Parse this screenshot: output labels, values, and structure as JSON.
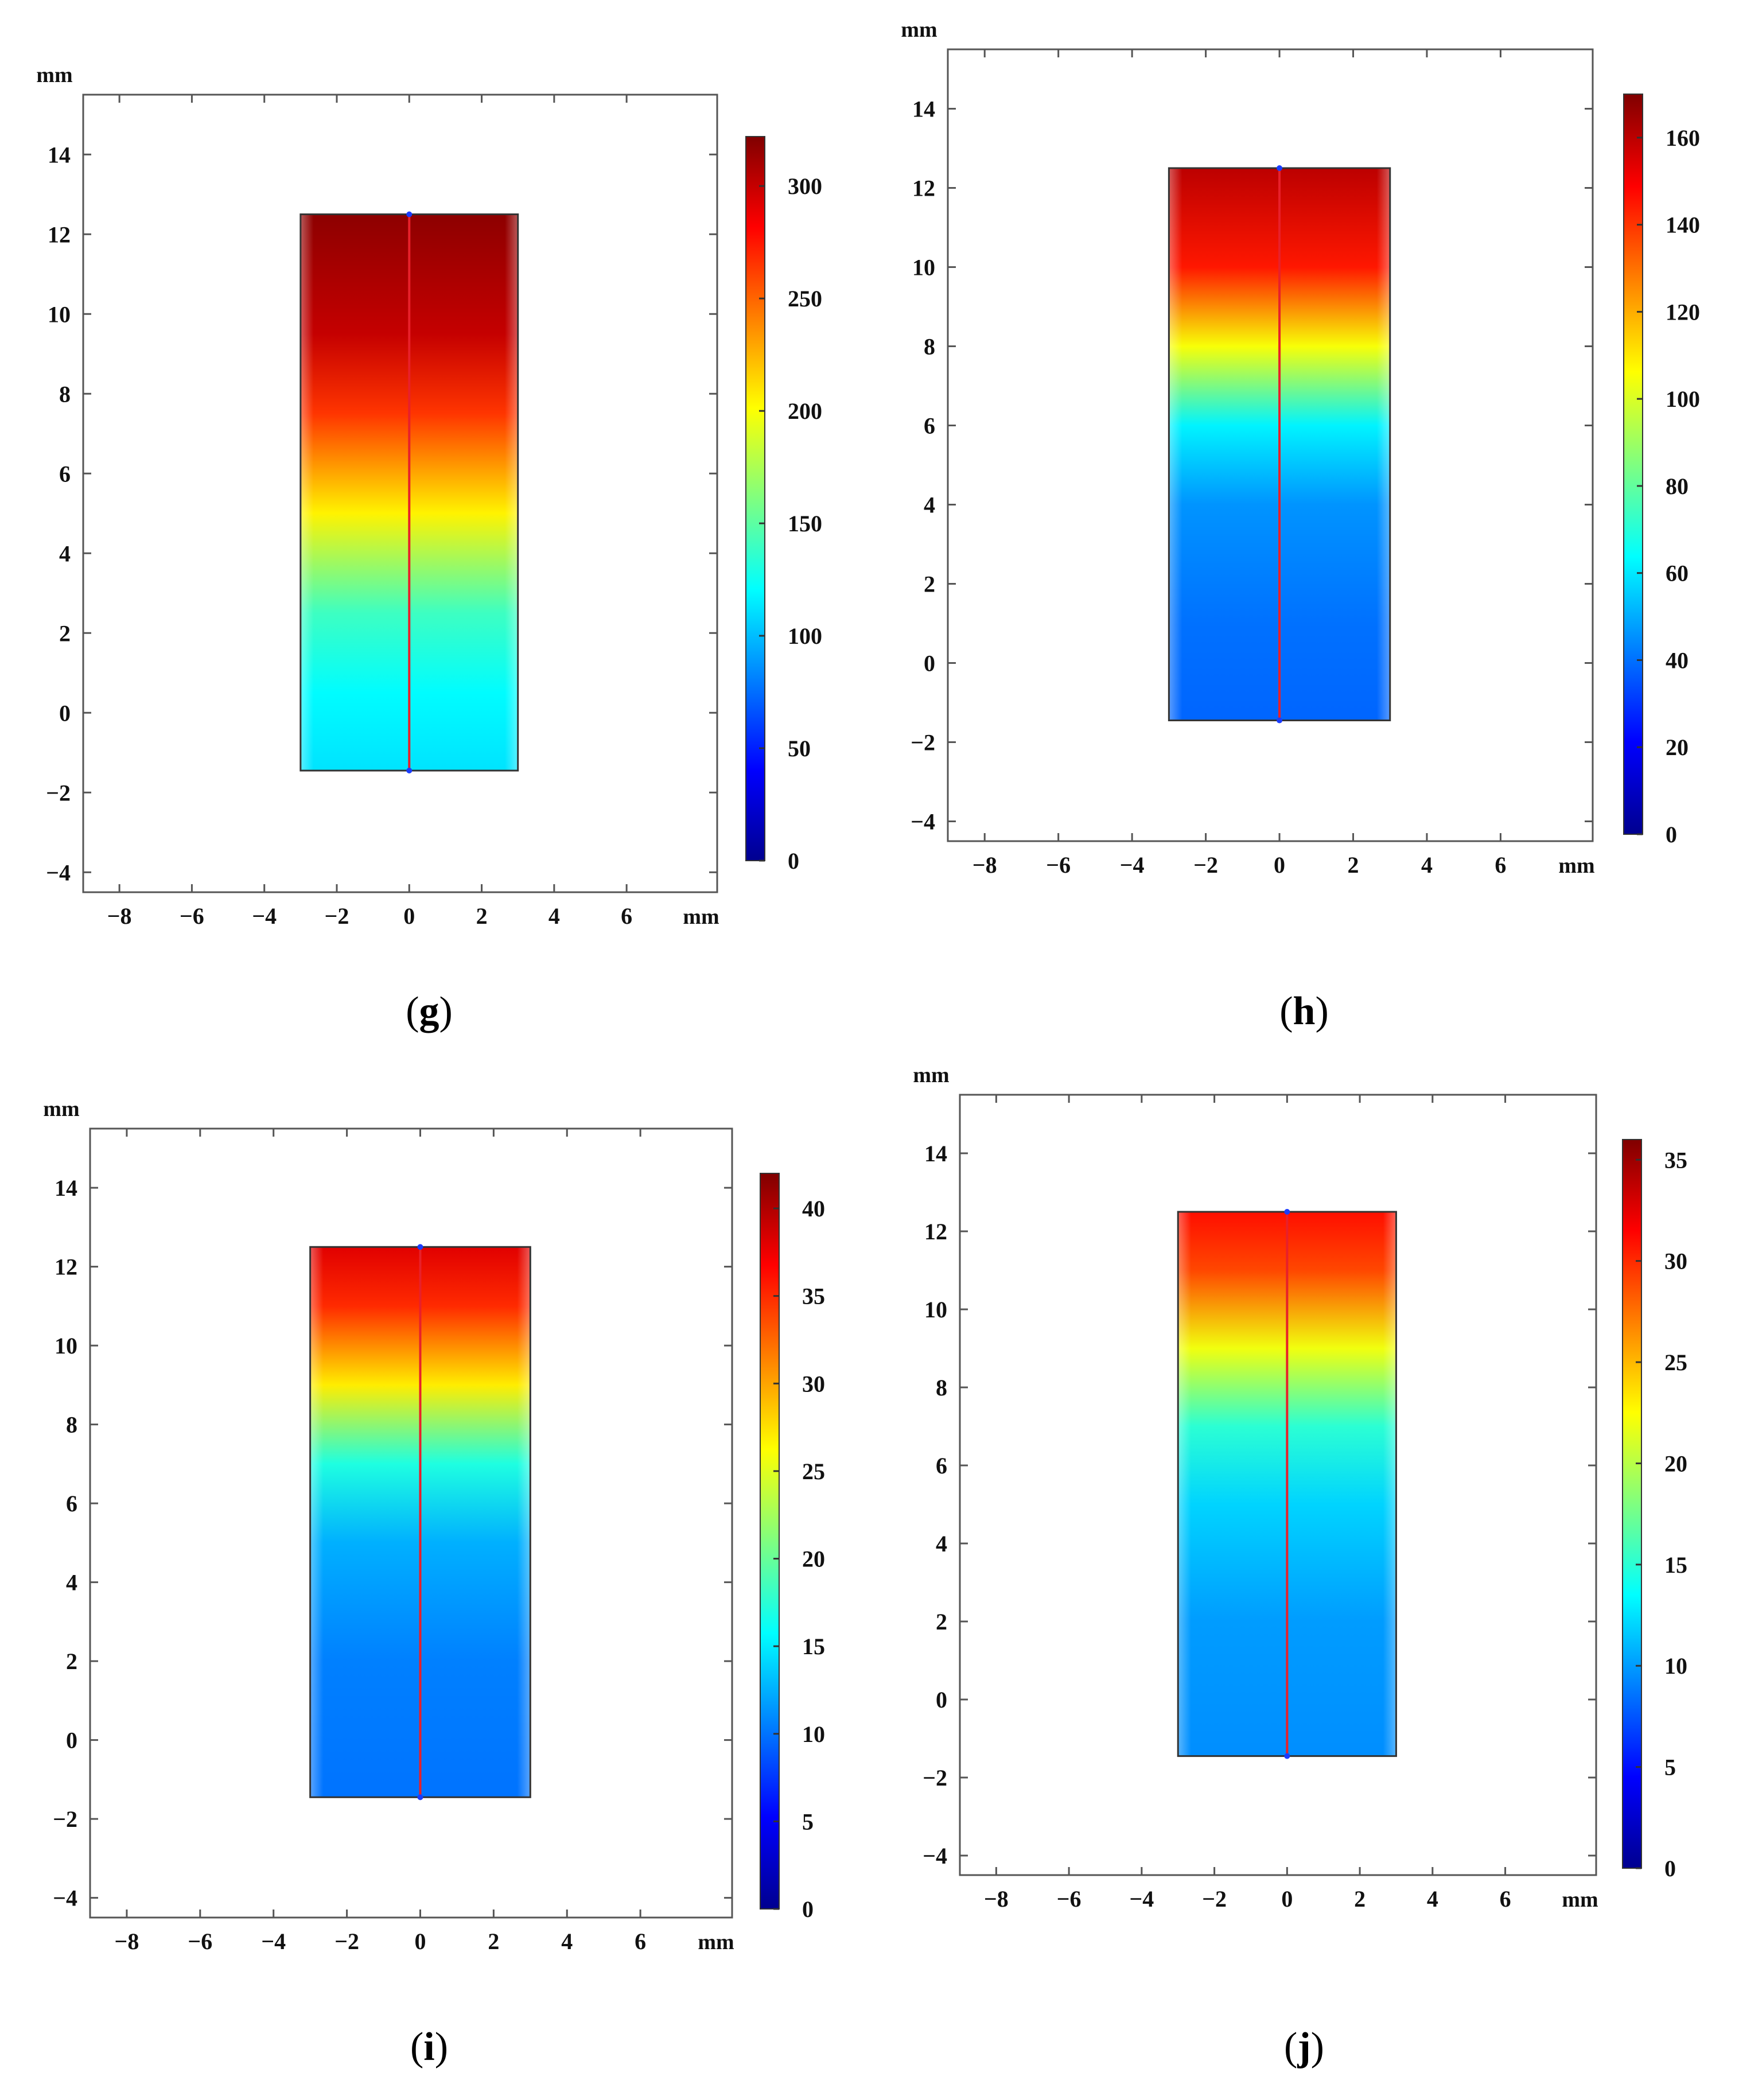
{
  "figure": {
    "units": "mm",
    "x_ticks": [
      "−8",
      "−6",
      "−4",
      "−2",
      "0",
      "2",
      "4",
      "6"
    ],
    "y_ticks": [
      "−4",
      "−2",
      "0",
      "2",
      "4",
      "6",
      "8",
      "10",
      "12",
      "14"
    ]
  },
  "chart_data": [
    {
      "type": "heatmap",
      "panel": "g",
      "xlabel": "mm",
      "ylabel": "mm",
      "xlim": [
        -9,
        8.5
      ],
      "ylim": [
        -4.5,
        15.5
      ],
      "domain": {
        "x": [
          -3,
          3
        ],
        "y": [
          -1.45,
          12.5
        ]
      },
      "centerline": {
        "x": 0,
        "y": [
          -1.45,
          12.5
        ]
      },
      "colorbar": {
        "range": [
          0,
          322
        ],
        "ticks": [
          0,
          50,
          100,
          150,
          200,
          250,
          300
        ]
      },
      "gradient_stops": [
        {
          "y": -1.45,
          "value": 112
        },
        {
          "y": 0.5,
          "value": 120
        },
        {
          "y": 2.5,
          "value": 140
        },
        {
          "y": 5.0,
          "value": 205
        },
        {
          "y": 7.5,
          "value": 265
        },
        {
          "y": 9.5,
          "value": 300
        },
        {
          "y": 12.5,
          "value": 318
        }
      ],
      "caption": "g"
    },
    {
      "type": "heatmap",
      "panel": "h",
      "xlabel": "mm",
      "ylabel": "mm",
      "xlim": [
        -9,
        8.5
      ],
      "ylim": [
        -4.5,
        15.5
      ],
      "domain": {
        "x": [
          -3,
          3
        ],
        "y": [
          -1.45,
          12.5
        ]
      },
      "centerline": {
        "x": 0,
        "y": [
          -1.45,
          12.5
        ]
      },
      "colorbar": {
        "range": [
          0,
          170
        ],
        "ticks": [
          0,
          20,
          40,
          60,
          80,
          100,
          120,
          140,
          160
        ]
      },
      "gradient_stops": [
        {
          "y": -1.45,
          "value": 38
        },
        {
          "y": 1.0,
          "value": 40
        },
        {
          "y": 4.0,
          "value": 46
        },
        {
          "y": 6.0,
          "value": 62
        },
        {
          "y": 8.0,
          "value": 105
        },
        {
          "y": 10.0,
          "value": 145
        },
        {
          "y": 12.5,
          "value": 160
        }
      ],
      "caption": "h"
    },
    {
      "type": "heatmap",
      "panel": "i",
      "xlabel": "mm",
      "ylabel": "mm",
      "xlim": [
        -9,
        8.5
      ],
      "ylim": [
        -4.5,
        15.5
      ],
      "domain": {
        "x": [
          -3,
          3
        ],
        "y": [
          -1.45,
          12.5
        ]
      },
      "centerline": {
        "x": 0,
        "y": [
          -1.45,
          12.5
        ]
      },
      "colorbar": {
        "range": [
          0,
          42
        ],
        "ticks": [
          0,
          5,
          10,
          15,
          20,
          25,
          30,
          35,
          40
        ]
      },
      "gradient_stops": [
        {
          "y": -1.45,
          "value": 10
        },
        {
          "y": 2.0,
          "value": 10.5
        },
        {
          "y": 5.0,
          "value": 12.5
        },
        {
          "y": 7.0,
          "value": 17
        },
        {
          "y": 9.0,
          "value": 27
        },
        {
          "y": 11.0,
          "value": 35
        },
        {
          "y": 12.5,
          "value": 38
        }
      ],
      "caption": "i"
    },
    {
      "type": "heatmap",
      "panel": "j",
      "xlabel": "mm",
      "ylabel": "mm",
      "xlim": [
        -9,
        8.5
      ],
      "ylim": [
        -4.5,
        15.5
      ],
      "domain": {
        "x": [
          -3,
          3
        ],
        "y": [
          -1.45,
          12.5
        ]
      },
      "centerline": {
        "x": 0,
        "y": [
          -1.45,
          12.5
        ]
      },
      "colorbar": {
        "range": [
          0,
          36
        ],
        "ticks": [
          0,
          5,
          10,
          15,
          20,
          25,
          30,
          35
        ]
      },
      "gradient_stops": [
        {
          "y": -1.45,
          "value": 9.5
        },
        {
          "y": 2.0,
          "value": 10
        },
        {
          "y": 5.0,
          "value": 12
        },
        {
          "y": 7.0,
          "value": 15
        },
        {
          "y": 9.0,
          "value": 22
        },
        {
          "y": 11.0,
          "value": 29
        },
        {
          "y": 12.5,
          "value": 31
        }
      ],
      "caption": "j"
    }
  ]
}
